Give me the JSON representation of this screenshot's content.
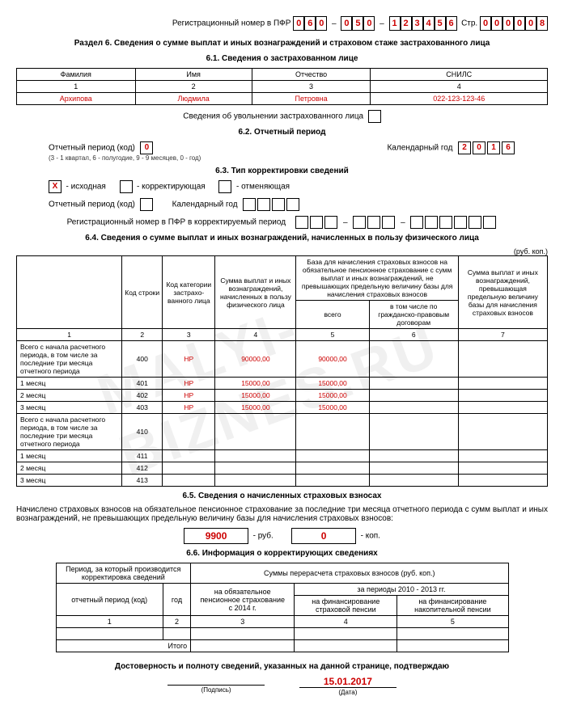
{
  "header": {
    "reg_label": "Регистрационный номер в ПФР",
    "reg_parts": [
      "060",
      "050",
      "123456"
    ],
    "page_label": "Стр.",
    "page_digits": "000008"
  },
  "section": {
    "title": "Раздел 6. Сведения о сумме выплат и иных вознаграждений и страховом стаже застрахованного лица"
  },
  "s61": {
    "title": "6.1. Сведения о застрахованном лице",
    "cols": [
      "Фамилия",
      "Имя",
      "Отчество",
      "СНИЛС"
    ],
    "colnums": [
      "1",
      "2",
      "3",
      "4"
    ],
    "vals": [
      "Архипова",
      "Людмила",
      "Петровна",
      "022-123-123-46"
    ],
    "dismiss_label": "Сведения об увольнении застрахованного лица"
  },
  "s62": {
    "title": "6.2. Отчетный период",
    "period_label": "Отчетный период  (код)",
    "period_note": "(3 - 1 квартал, 6 - полугодие, 9 - 9 месяцев, 0 - год)",
    "period_val": "0",
    "year_label": "Календарный год",
    "year_digits": "2016"
  },
  "s63": {
    "title": "6.3. Тип корректировки сведений",
    "opts": [
      {
        "mark": "X",
        "label": "исходная"
      },
      {
        "mark": "",
        "label": "корректирующая"
      },
      {
        "mark": "",
        "label": "отменяющая"
      }
    ],
    "period_label": "Отчетный период  (код)",
    "year_label": "Календарный год",
    "reg_label": "Регистрационный номер в ПФР в корректируемый период"
  },
  "s64": {
    "title": "6.4. Сведения о сумме выплат и иных вознаграждений, начисленных в пользу физического лица",
    "unit": "(руб. коп.)",
    "head": {
      "c1": "",
      "c2": "Код строки",
      "c3": "Код категории застрахо-ванного лица",
      "c4": "Сумма выплат и иных вознаграждений, начисленных в пользу физического лица",
      "c56": "База для начисления страховых взносов на обязательное пенсионное страхование с сумм выплат и иных вознаграждений, не превышающих предельную величину базы для начисления страховых взносов",
      "c5": "всего",
      "c6": "в том числе по гражданско-правовым  договорам",
      "c7": "Сумма выплат и иных вознаграждений, превышающая предельную величину базы для начисления страховых взносов"
    },
    "nums": [
      "1",
      "2",
      "3",
      "4",
      "5",
      "6",
      "7"
    ],
    "rows": [
      {
        "n": "Всего с начала расчетного периода, в том числе за последние три месяца отчетного периода",
        "c": "400",
        "k": "НР",
        "v4": "90000,00",
        "v5": "90000,00",
        "v6": "",
        "v7": ""
      },
      {
        "n": "1 месяц",
        "c": "401",
        "k": "НР",
        "v4": "15000,00",
        "v5": "15000,00",
        "v6": "",
        "v7": ""
      },
      {
        "n": "2 месяц",
        "c": "402",
        "k": "НР",
        "v4": "15000,00",
        "v5": "15000,00",
        "v6": "",
        "v7": ""
      },
      {
        "n": "3 месяц",
        "c": "403",
        "k": "НР",
        "v4": "15000,00",
        "v5": "15000,00",
        "v6": "",
        "v7": ""
      },
      {
        "n": "Всего с начала расчетного периода, в том числе за последние три месяца отчетного периода",
        "c": "410",
        "k": "",
        "v4": "",
        "v5": "",
        "v6": "",
        "v7": ""
      },
      {
        "n": "1 месяц",
        "c": "411",
        "k": "",
        "v4": "",
        "v5": "",
        "v6": "",
        "v7": ""
      },
      {
        "n": "2 месяц",
        "c": "412",
        "k": "",
        "v4": "",
        "v5": "",
        "v6": "",
        "v7": ""
      },
      {
        "n": "3 месяц",
        "c": "413",
        "k": "",
        "v4": "",
        "v5": "",
        "v6": "",
        "v7": ""
      }
    ]
  },
  "s65": {
    "title": "6.5. Сведения о начисленных страховых взносах",
    "text": "Начислено страховых взносов  на обязательное пенсионное страхование за последние три месяца отчетного периода с сумм выплат и иных вознаграждений, не превышающих предельную величину базы для начисления страховых взносов:",
    "rub": "9900",
    "rub_label": "- руб.",
    "kop": "0",
    "kop_label": "- коп."
  },
  "s66": {
    "title": "6.6. Информация о корректирующих сведениях",
    "h1": "Период, за который производится корректировка сведений",
    "h2": "Суммы перерасчета страховых взносов (руб. коп.)",
    "h1a": "отчетный период (код)",
    "h1b": "год",
    "h2a": "на обязательное пенсионное страхование\nс 2014 г.",
    "h2b": "за периоды 2010 - 2013 гг.",
    "h2b1": "на финансирование страховой пенсии",
    "h2b2": "на финансирование накопительной пенсии",
    "nums": [
      "1",
      "2",
      "3",
      "4",
      "5"
    ],
    "itogo": "Итого"
  },
  "footer": {
    "confirm": "Достоверность и полноту сведений, указанных на данной странице, подтверждаю",
    "date": "15.01.2017",
    "sig_label": "(Подпись)",
    "date_label": "(Дата)"
  }
}
